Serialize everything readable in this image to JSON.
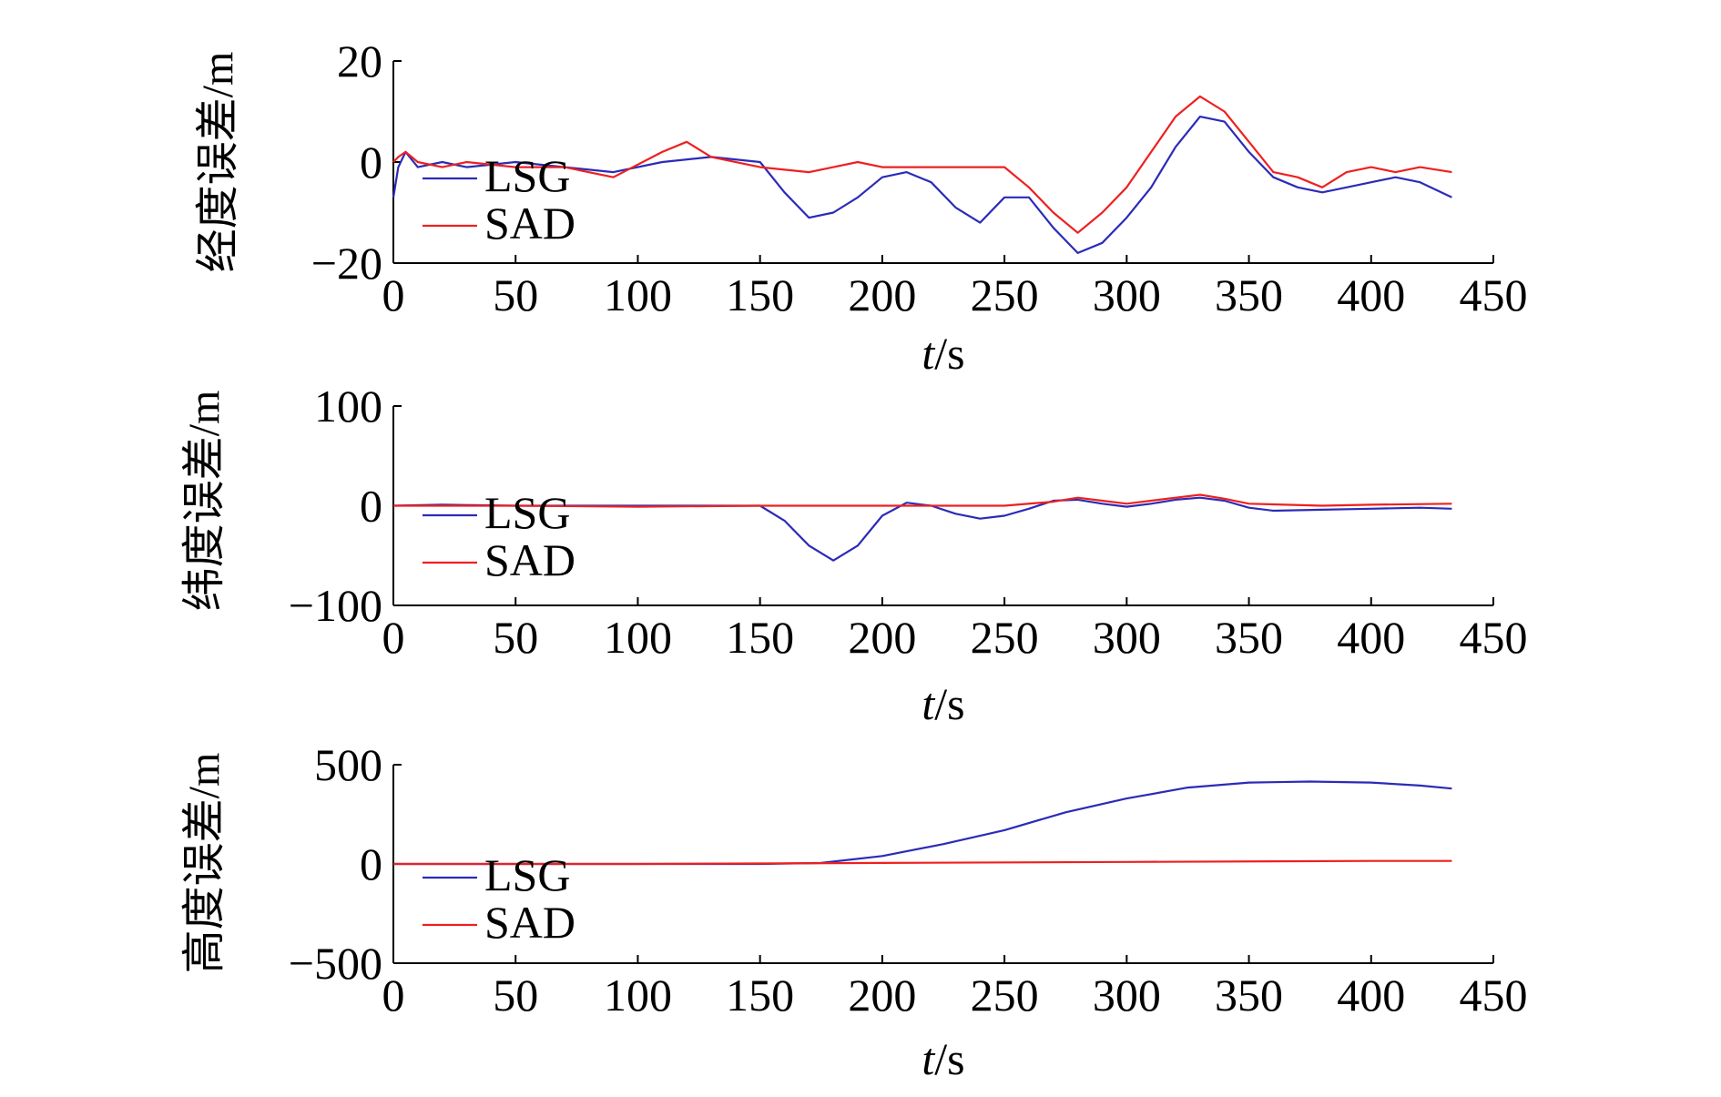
{
  "colors": {
    "LSG": "#2b2bb8",
    "SAD": "#ee2020",
    "axis": "#000000"
  },
  "chart_data": [
    {
      "type": "line",
      "ylabel": "经度误差/m",
      "xlabel_italic": "t",
      "xlabel_rest": "/s",
      "xlim": [
        0,
        450
      ],
      "ylim": [
        -20,
        20
      ],
      "xticks": [
        "0",
        "50",
        "100",
        "150",
        "200",
        "250",
        "300",
        "350",
        "400",
        "450"
      ],
      "yticks": [
        "20",
        "0",
        "−20"
      ],
      "ytick_values": [
        20,
        0,
        -20
      ],
      "legend": {
        "position": "bottom-left",
        "entries": [
          "LSG",
          "SAD"
        ]
      },
      "series": [
        {
          "name": "LSG",
          "x": [
            0,
            2,
            5,
            10,
            20,
            30,
            50,
            70,
            90,
            110,
            130,
            150,
            160,
            170,
            180,
            190,
            200,
            210,
            220,
            230,
            240,
            250,
            260,
            270,
            280,
            290,
            300,
            310,
            320,
            330,
            340,
            350,
            360,
            370,
            380,
            390,
            400,
            410,
            420,
            433
          ],
          "y": [
            -7,
            -1,
            2,
            -1,
            0,
            -1,
            0,
            -1,
            -2,
            0,
            1,
            0,
            -6,
            -11,
            -10,
            -7,
            -3,
            -2,
            -4,
            -9,
            -12,
            -7,
            -7,
            -13,
            -18,
            -16,
            -11,
            -5,
            3,
            9,
            8,
            2,
            -3,
            -5,
            -6,
            -5,
            -4,
            -3,
            -4,
            -7
          ]
        },
        {
          "name": "SAD",
          "x": [
            0,
            2,
            5,
            10,
            20,
            30,
            50,
            70,
            90,
            110,
            120,
            130,
            150,
            170,
            180,
            190,
            200,
            210,
            220,
            230,
            240,
            250,
            260,
            270,
            280,
            290,
            300,
            310,
            320,
            330,
            340,
            350,
            360,
            370,
            380,
            390,
            400,
            410,
            420,
            433
          ],
          "y": [
            0,
            1,
            2,
            0,
            -1,
            0,
            -1,
            -1,
            -3,
            2,
            4,
            1,
            -1,
            -2,
            -1,
            0,
            -1,
            -1,
            -1,
            -1,
            -1,
            -1,
            -5,
            -10,
            -14,
            -10,
            -5,
            2,
            9,
            13,
            10,
            4,
            -2,
            -3,
            -5,
            -2,
            -1,
            -2,
            -1,
            -2
          ]
        }
      ]
    },
    {
      "type": "line",
      "ylabel": "纬度误差/m",
      "xlabel_italic": "t",
      "xlabel_rest": "/s",
      "xlim": [
        0,
        450
      ],
      "ylim": [
        -100,
        100
      ],
      "xticks": [
        "0",
        "50",
        "100",
        "150",
        "200",
        "250",
        "300",
        "350",
        "400",
        "450"
      ],
      "yticks": [
        "100",
        "0",
        "−100"
      ],
      "ytick_values": [
        100,
        0,
        -100
      ],
      "legend": {
        "position": "bottom-left",
        "entries": [
          "LSG",
          "SAD"
        ]
      },
      "series": [
        {
          "name": "LSG",
          "x": [
            0,
            20,
            50,
            100,
            150,
            160,
            170,
            180,
            190,
            200,
            210,
            220,
            230,
            240,
            250,
            260,
            270,
            280,
            290,
            300,
            310,
            320,
            330,
            340,
            350,
            360,
            380,
            400,
            420,
            433
          ],
          "y": [
            0,
            1,
            0,
            0,
            0,
            -15,
            -40,
            -55,
            -40,
            -10,
            3,
            0,
            -8,
            -13,
            -10,
            -3,
            5,
            6,
            2,
            -1,
            2,
            6,
            8,
            5,
            -2,
            -5,
            -4,
            -3,
            -2,
            -3
          ]
        },
        {
          "name": "SAD",
          "x": [
            0,
            50,
            100,
            150,
            200,
            250,
            270,
            280,
            290,
            300,
            320,
            330,
            340,
            350,
            380,
            400,
            433
          ],
          "y": [
            0,
            0,
            -1,
            0,
            0,
            0,
            4,
            8,
            5,
            2,
            8,
            11,
            7,
            2,
            0,
            1,
            2
          ]
        }
      ]
    },
    {
      "type": "line",
      "ylabel": "高度误差/m",
      "xlabel_italic": "t",
      "xlabel_rest": "/s",
      "xlim": [
        0,
        450
      ],
      "ylim": [
        -500,
        500
      ],
      "xticks": [
        "0",
        "50",
        "100",
        "150",
        "200",
        "250",
        "300",
        "350",
        "400",
        "450"
      ],
      "yticks": [
        "500",
        "0",
        "−500"
      ],
      "ytick_values": [
        500,
        0,
        -500
      ],
      "legend": {
        "position": "bottom-left",
        "entries": [
          "LSG",
          "SAD"
        ]
      },
      "series": [
        {
          "name": "LSG",
          "x": [
            0,
            50,
            100,
            150,
            175,
            200,
            225,
            250,
            275,
            300,
            325,
            350,
            375,
            400,
            420,
            433
          ],
          "y": [
            0,
            0,
            0,
            0,
            5,
            40,
            100,
            170,
            260,
            330,
            385,
            410,
            415,
            410,
            395,
            380
          ]
        },
        {
          "name": "SAD",
          "x": [
            0,
            100,
            200,
            300,
            400,
            433
          ],
          "y": [
            0,
            0,
            5,
            10,
            15,
            15
          ]
        }
      ]
    }
  ]
}
